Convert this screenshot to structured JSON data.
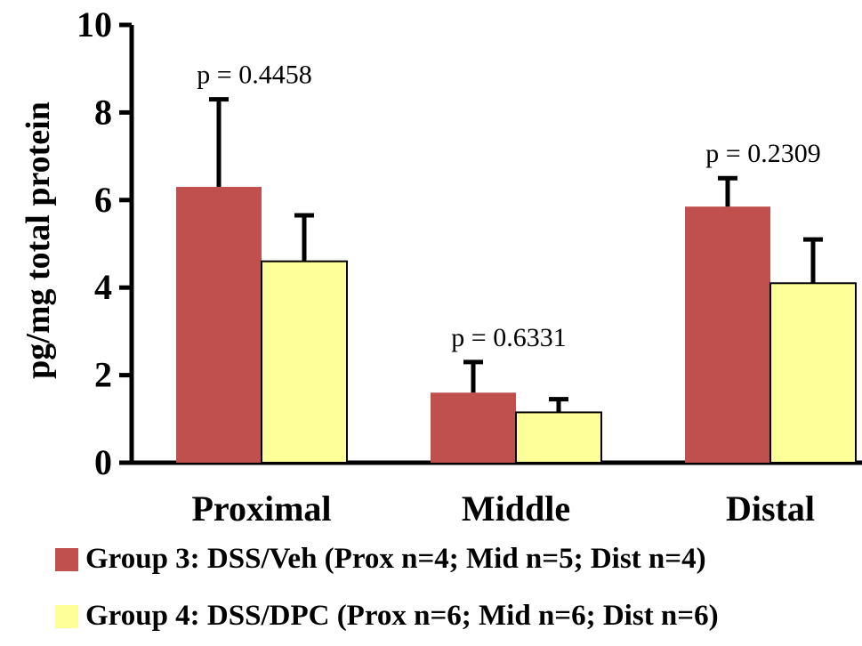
{
  "chart_data": {
    "type": "bar",
    "categories": [
      "Proximal",
      "Middle",
      "Distal"
    ],
    "ylabel": "pg/mg total protein",
    "ylim": [
      0,
      10
    ],
    "yticks": [
      0,
      2,
      4,
      6,
      8,
      10
    ],
    "series": [
      {
        "name": "Group 3: DSS/Veh (Prox n=4; Mid n=5; Dist n=4)",
        "color": "#c0504d",
        "values": [
          6.3,
          1.6,
          5.85
        ],
        "errors": [
          2.0,
          0.7,
          0.65
        ]
      },
      {
        "name": "Group 4: DSS/DPC (Prox n=6; Mid n=6; Dist n=6)",
        "color": "#ffff99",
        "values": [
          4.6,
          1.15,
          4.1
        ],
        "errors": [
          1.05,
          0.3,
          1.0
        ]
      }
    ],
    "annotations": [
      "p = 0.4458",
      "p = 0.6331",
      "p = 0.2309"
    ],
    "legend_position": "bottom"
  }
}
